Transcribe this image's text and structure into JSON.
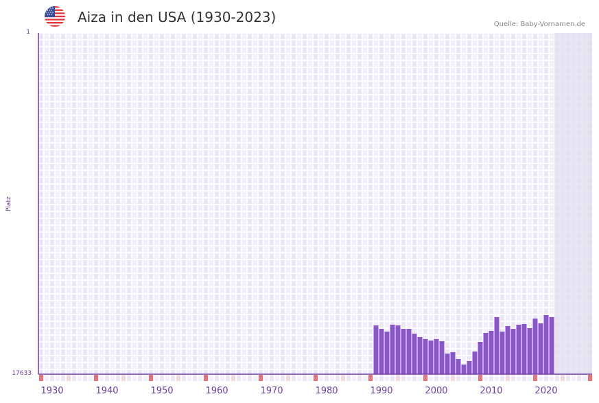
{
  "header": {
    "title": "Aiza in den USA (1930-2023)",
    "source": "Quelle: Baby-Vornamen.de",
    "flag_icon": "us-flag-icon"
  },
  "axes": {
    "y_title": "Platz",
    "y_top_label": "1",
    "y_bottom_label": "17633",
    "x_labels": [
      "1930",
      "1940",
      "1950",
      "1960",
      "1970",
      "1980",
      "1990",
      "2000",
      "2010",
      "2020"
    ]
  },
  "colors": {
    "bar": "#8a55c8",
    "axis": "#6b3fa0",
    "grid_a": "#ece6f8",
    "grid_b": "#f3f0fb",
    "shade": "#e3dfee",
    "decade_marker": "#e8737a",
    "halfdecade_marker": "#f6d6df"
  },
  "chart_data": {
    "type": "bar",
    "title": "Aiza in den USA (1930-2023)",
    "subtitle": "Quelle: Baby-Vornamen.de",
    "xlabel": "",
    "ylabel": "Platz",
    "y_inverted": true,
    "ylim": [
      1,
      17633
    ],
    "x_range": [
      1928,
      2028
    ],
    "grid": true,
    "shaded_region_from_year": 2022,
    "x_tick_labels": [
      "1930",
      "1940",
      "1950",
      "1960",
      "1970",
      "1980",
      "1990",
      "2000",
      "2010",
      "2020"
    ],
    "categories": [
      1989,
      1990,
      1991,
      1992,
      1993,
      1994,
      1995,
      1996,
      1997,
      1998,
      1999,
      2000,
      2001,
      2002,
      2003,
      2004,
      2005,
      2006,
      2007,
      2008,
      2009,
      2010,
      2011,
      2012,
      2013,
      2014,
      2015,
      2016,
      2017,
      2018,
      2019,
      2020,
      2021
    ],
    "series": [
      {
        "name": "Platz",
        "values": [
          15114,
          15291,
          15433,
          15078,
          15114,
          15291,
          15291,
          15539,
          15716,
          15823,
          15894,
          15823,
          15929,
          16568,
          16497,
          16852,
          17135,
          16958,
          16462,
          15965,
          15504,
          15398,
          14688,
          15433,
          15149,
          15291,
          15078,
          15043,
          15256,
          14759,
          15007,
          14581,
          14688
        ]
      }
    ]
  }
}
